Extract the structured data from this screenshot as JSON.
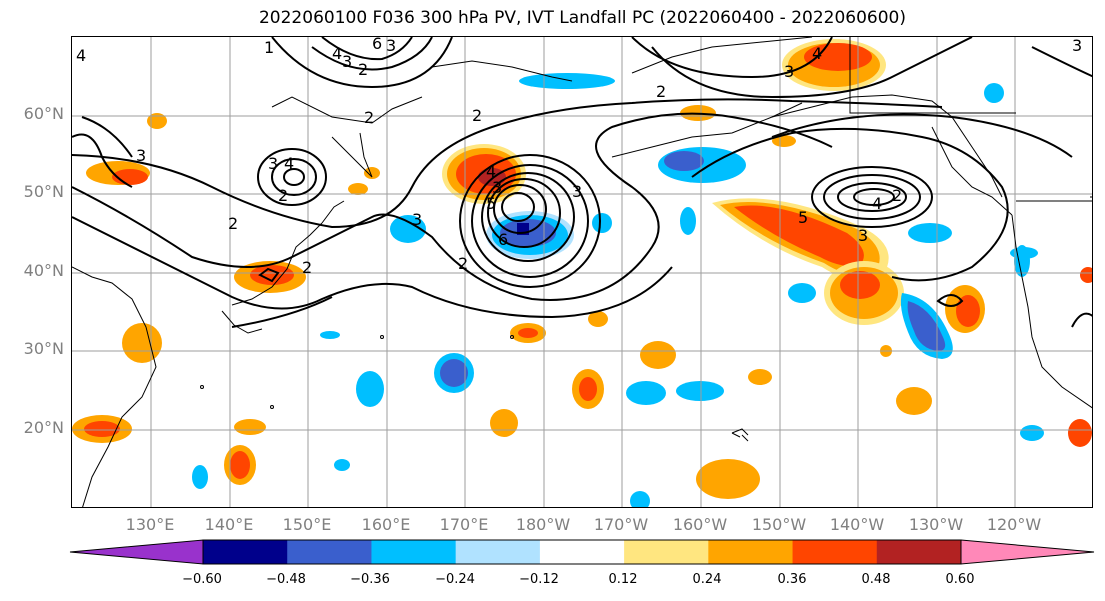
{
  "title": "2022060100 F036 300 hPa PV, IVT Landfall PC (2022060400 - 2022060600)",
  "lat_labels": [
    "60°N",
    "50°N",
    "40°N",
    "30°N",
    "20°N"
  ],
  "lon_labels": [
    "130°E",
    "140°E",
    "150°E",
    "160°E",
    "170°E",
    "180°W",
    "170°W",
    "160°W",
    "150°W",
    "140°W",
    "130°W",
    "120°W"
  ],
  "colorbar": {
    "ticks": [
      "−0.60",
      "−0.48",
      "−0.36",
      "−0.24",
      "−0.12",
      "0.12",
      "0.24",
      "0.36",
      "0.48",
      "0.60"
    ],
    "colors": [
      "#9932cc",
      "#00008b",
      "#3a5fcd",
      "#00bfff",
      "#b0e2ff",
      "#ffffff",
      "#ffe680",
      "#ffa500",
      "#ff4500",
      "#b22222",
      "#ff88b8"
    ]
  },
  "contour_labels": [
    "1",
    "4",
    "3",
    "2",
    "6",
    "3",
    "2",
    "4",
    "3",
    "3",
    "4",
    "2",
    "2",
    "3",
    "2",
    "3",
    "2",
    "4",
    "3",
    "5",
    "6",
    "2",
    "3",
    "4",
    "5",
    "2",
    "3",
    "4",
    "3",
    "2"
  ]
}
